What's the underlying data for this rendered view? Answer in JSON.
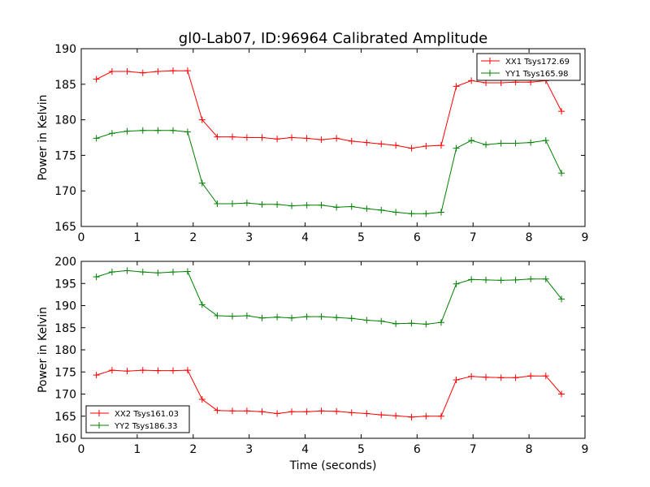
{
  "figure": {
    "title": "gl0-Lab07, ID:96964 Calibrated Amplitude"
  },
  "chart_data": [
    {
      "type": "line",
      "title": "gl0-Lab07, ID:96964 Calibrated Amplitude",
      "xlabel": "",
      "ylabel": "Power in Kelvin",
      "xlim": [
        0,
        9
      ],
      "ylim": [
        165,
        190
      ],
      "xticks": [
        0,
        1,
        2,
        3,
        4,
        5,
        6,
        7,
        8,
        9
      ],
      "yticks": [
        165,
        170,
        175,
        180,
        185,
        190
      ],
      "grid": false,
      "legend_position": "upper-right",
      "x": [
        0.27,
        0.55,
        0.82,
        1.1,
        1.37,
        1.64,
        1.9,
        2.16,
        2.43,
        2.7,
        2.96,
        3.23,
        3.5,
        3.76,
        4.03,
        4.29,
        4.56,
        4.83,
        5.1,
        5.36,
        5.62,
        5.9,
        6.16,
        6.43,
        6.7,
        6.97,
        7.23,
        7.5,
        7.76,
        8.03,
        8.3,
        8.58
      ],
      "series": [
        {
          "name": "XX1 Tsys172.69",
          "color": "#ff0000",
          "values": [
            185.7,
            186.8,
            186.8,
            186.6,
            186.8,
            186.9,
            186.9,
            180.0,
            177.6,
            177.6,
            177.5,
            177.5,
            177.3,
            177.5,
            177.4,
            177.2,
            177.4,
            177.0,
            176.8,
            176.6,
            176.4,
            176.0,
            176.3,
            176.4,
            184.7,
            185.5,
            185.2,
            185.2,
            185.3,
            185.3,
            185.5,
            181.2
          ]
        },
        {
          "name": "YY1 Tsys165.98",
          "color": "#008000",
          "values": [
            177.4,
            178.1,
            178.4,
            178.5,
            178.5,
            178.5,
            178.3,
            171.1,
            168.2,
            168.2,
            168.3,
            168.1,
            168.1,
            167.9,
            168.0,
            168.0,
            167.7,
            167.8,
            167.5,
            167.3,
            167.0,
            166.8,
            166.8,
            167.0,
            176.0,
            177.1,
            176.5,
            176.7,
            176.7,
            176.8,
            177.1,
            172.5
          ]
        }
      ]
    },
    {
      "type": "line",
      "title": "",
      "xlabel": "Time (seconds)",
      "ylabel": "Power in Kelvin",
      "xlim": [
        0,
        9
      ],
      "ylim": [
        160,
        200
      ],
      "xticks": [
        0,
        1,
        2,
        3,
        4,
        5,
        6,
        7,
        8,
        9
      ],
      "yticks": [
        160,
        165,
        170,
        175,
        180,
        185,
        190,
        195,
        200
      ],
      "grid": false,
      "legend_position": "lower-left",
      "x": [
        0.27,
        0.55,
        0.82,
        1.1,
        1.37,
        1.64,
        1.9,
        2.16,
        2.43,
        2.7,
        2.96,
        3.23,
        3.5,
        3.76,
        4.03,
        4.29,
        4.56,
        4.83,
        5.1,
        5.36,
        5.62,
        5.9,
        6.16,
        6.43,
        6.7,
        6.97,
        7.23,
        7.5,
        7.76,
        8.03,
        8.3,
        8.58
      ],
      "series": [
        {
          "name": "XX2 Tsys161.03",
          "color": "#ff0000",
          "values": [
            174.3,
            175.4,
            175.2,
            175.4,
            175.3,
            175.3,
            175.4,
            168.8,
            166.3,
            166.2,
            166.2,
            166.0,
            165.6,
            166.0,
            166.0,
            166.2,
            166.1,
            165.8,
            165.6,
            165.3,
            165.1,
            164.8,
            165.0,
            165.0,
            173.2,
            174.0,
            173.8,
            173.7,
            173.7,
            174.1,
            174.1,
            170.0
          ]
        },
        {
          "name": "YY2 Tsys186.33",
          "color": "#008000",
          "values": [
            196.5,
            197.6,
            197.9,
            197.6,
            197.4,
            197.6,
            197.7,
            190.2,
            187.7,
            187.6,
            187.7,
            187.2,
            187.4,
            187.2,
            187.5,
            187.5,
            187.3,
            187.1,
            186.7,
            186.5,
            185.9,
            186.0,
            185.8,
            186.2,
            194.9,
            195.9,
            195.8,
            195.7,
            195.8,
            196.0,
            196.0,
            191.5
          ]
        }
      ]
    }
  ]
}
